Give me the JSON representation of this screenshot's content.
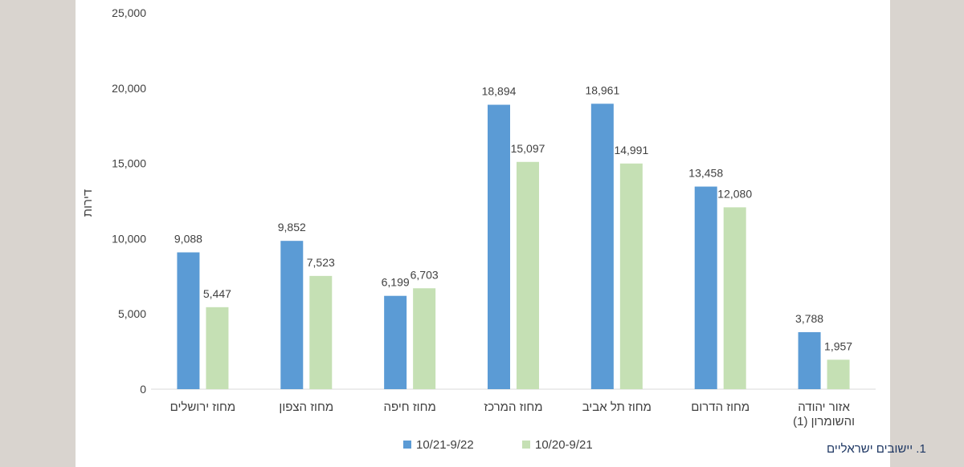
{
  "chart_data": {
    "type": "bar",
    "ylabel": "דירות",
    "ylim": [
      0,
      25000
    ],
    "yticks": [
      "0",
      "5,000",
      "10,000",
      "15,000",
      "20,000",
      "25,000"
    ],
    "categories": [
      [
        "מחוז ירושלים"
      ],
      [
        "מחוז הצפון"
      ],
      [
        "מחוז חיפה"
      ],
      [
        "מחוז המרכז"
      ],
      [
        "מחוז תל אביב"
      ],
      [
        "מחוז הדרום"
      ],
      [
        "אזור יהודה",
        "והשומרון (1)"
      ]
    ],
    "series": [
      {
        "name": "10/21-9/22",
        "color": "#5b9bd5",
        "values": [
          9088,
          9852,
          6199,
          18894,
          18961,
          13458,
          3788
        ],
        "labels": [
          "9,088",
          "9,852",
          "6,199",
          "18,894",
          "18,961",
          "13,458",
          "3,788"
        ]
      },
      {
        "name": "10/20-9/21",
        "color": "#c5e0b4",
        "values": [
          5447,
          7523,
          6703,
          15097,
          14991,
          12080,
          1957
        ],
        "labels": [
          "5,447",
          "7,523",
          "6,703",
          "15,097",
          "14,991",
          "12,080",
          "1,957"
        ]
      }
    ],
    "grid": false,
    "legend_position": "bottom"
  },
  "footnote": "1. יישובים ישראליים"
}
